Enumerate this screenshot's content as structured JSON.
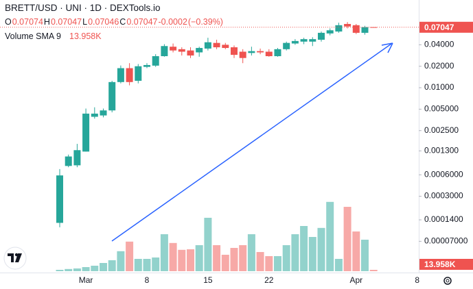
{
  "chart_data": {
    "type": "candlestick",
    "title": "BRETT/USD · UNI · 1D · DEXTools.io",
    "ohlc_labels": [
      "O",
      "H",
      "L",
      "C"
    ],
    "change": -0.0002,
    "change_pct": {
      "value": -0.39,
      "label": "(−0.39%)"
    },
    "volume_label": "Volume SMA 9",
    "volume_sma": {
      "value": 13.958,
      "label": "13.958K"
    },
    "categories": [
      null,
      null,
      null,
      "Mar",
      null,
      null,
      null,
      null,
      null,
      null,
      "8",
      null,
      null,
      null,
      null,
      null,
      null,
      "15",
      null,
      null,
      null,
      null,
      null,
      null,
      "22",
      null,
      null,
      null,
      null,
      null,
      null,
      null,
      null,
      null,
      "Apr",
      null,
      null,
      null,
      null,
      null,
      null,
      "8"
    ],
    "open": [
      0.000127,
      0.000798,
      0.000815,
      0.00127,
      0.00391,
      0.00408,
      0.0048,
      0.012,
      0.0188,
      0.0125,
      0.0196,
      0.0204,
      0.0277,
      0.0376,
      0.0347,
      0.0333,
      0.0313,
      0.0354,
      0.0425,
      0.04,
      0.0369,
      0.032,
      0.0307,
      0.0326,
      0.032,
      0.0277,
      0.0347,
      0.0417,
      0.0443,
      0.0443,
      0.0471,
      0.0577,
      0.0614,
      0.0784,
      0.0753,
      0.0589,
      0.07074,
      null,
      null,
      null,
      null,
      null
    ],
    "high": [
      0.000721,
      0.001152,
      0.00163,
      0.0051,
      0.00531,
      0.0051,
      0.0125,
      0.0205,
      0.0221,
      0.0215,
      0.0221,
      0.0295,
      0.0408,
      0.0417,
      0.0369,
      0.0369,
      0.0376,
      0.0502,
      0.0471,
      0.0425,
      0.0392,
      0.0347,
      0.0376,
      0.0354,
      0.0347,
      0.0361,
      0.0443,
      0.048,
      0.0502,
      0.0511,
      0.0614,
      0.068,
      0.0817,
      0.0833,
      0.0784,
      0.0737,
      0.07047,
      null,
      null,
      null,
      null,
      null
    ],
    "low": [
      0.00011,
      0.000766,
      0.000766,
      0.00127,
      0.00368,
      0.00384,
      0.00451,
      0.0115,
      0.0108,
      0.0115,
      0.0188,
      0.0196,
      0.0272,
      0.0313,
      0.0283,
      0.0261,
      0.0272,
      0.0333,
      0.0347,
      0.0347,
      0.0261,
      0.0221,
      0.0283,
      0.0295,
      0.0272,
      0.0272,
      0.0333,
      0.04,
      0.0408,
      0.0384,
      0.0443,
      0.0543,
      0.0589,
      0.068,
      0.0566,
      0.0554,
      0.07046,
      null,
      null,
      null,
      null,
      null
    ],
    "close": [
      0.000588,
      0.001084,
      0.00133,
      0.00433,
      0.00433,
      0.0048,
      0.012,
      0.0188,
      0.012,
      0.02,
      0.0208,
      0.0277,
      0.0384,
      0.0333,
      0.032,
      0.0283,
      0.0361,
      0.0434,
      0.0369,
      0.0361,
      0.0289,
      0.0261,
      0.0326,
      0.0313,
      0.0277,
      0.0347,
      0.0425,
      0.0452,
      0.048,
      0.048,
      0.0589,
      0.0639,
      0.0753,
      0.0722,
      0.0589,
      0.0708,
      0.07047,
      null,
      null,
      null,
      null,
      null
    ],
    "volume": [
      0.5,
      0.8,
      1,
      1.5,
      2,
      3,
      4,
      7.3,
      10.8,
      4.5,
      4.5,
      5,
      13.5,
      10.3,
      7.8,
      8,
      9.5,
      19.5,
      9.5,
      6,
      8.5,
      9.5,
      13.5,
      7,
      5.5,
      5.5,
      9.5,
      13.5,
      16.5,
      12.5,
      15.8,
      25.3,
      4.5,
      23.5,
      14.5,
      11.5,
      0.5,
      null,
      null,
      null,
      null,
      null
    ],
    "up_color": "#26a69a",
    "down_color": "#ef5350",
    "volume_up_color": "#92d2cc",
    "volume_down_color": "#f7a9a7",
    "log_scale": true,
    "grid": false,
    "ylim": [
      2.55e-05,
      0.17
    ],
    "vlim": [
      0,
      26.25
    ],
    "yticks": [
      {
        "value": 7e-05,
        "label": "0.00007000"
      },
      {
        "value": 0.00014,
        "label": "0.0001400"
      },
      {
        "value": 0.0003,
        "label": "0.0003000"
      },
      {
        "value": 0.0006,
        "label": "0.0006000"
      },
      {
        "value": 0.0013,
        "label": "0.001300"
      },
      {
        "value": 0.0025,
        "label": "0.002500"
      },
      {
        "value": 0.005,
        "label": "0.005000"
      },
      {
        "value": 0.01,
        "label": "0.01000"
      },
      {
        "value": 0.02,
        "label": "0.02000"
      },
      {
        "value": 0.04,
        "label": "0.04000"
      }
    ]
  }
}
